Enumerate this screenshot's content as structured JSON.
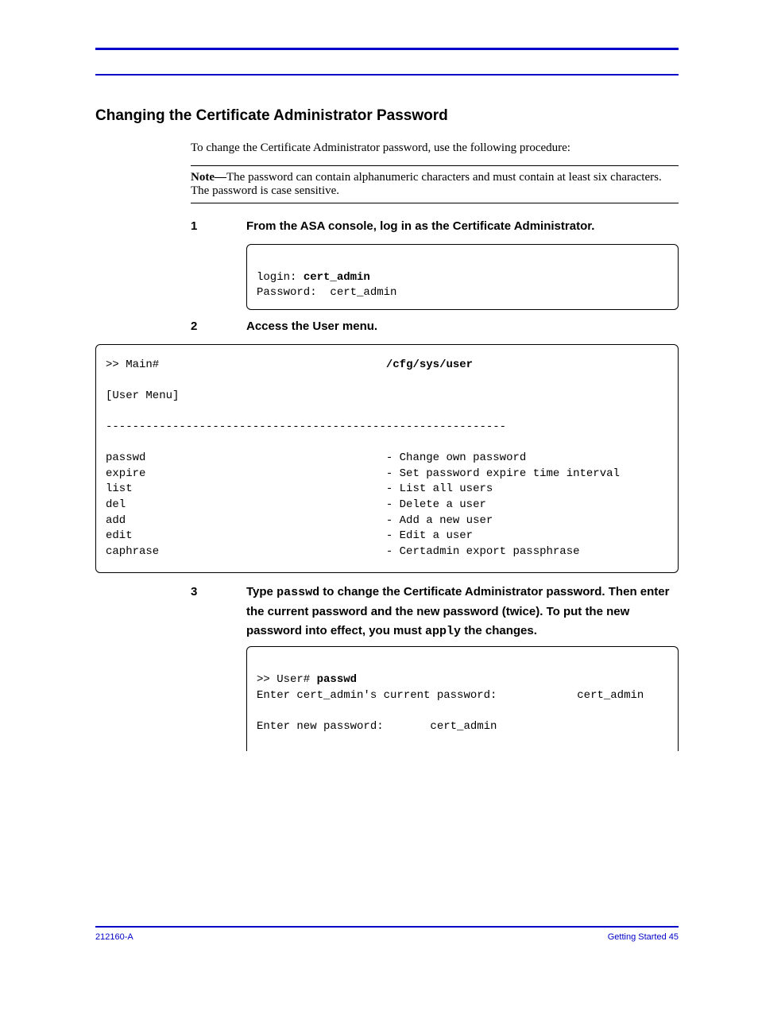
{
  "header": {
    "left": "",
    "right": ""
  },
  "section": {
    "heading": "Changing the Certificate Administrator Password",
    "intro": "To change the Certificate Administrator password, use the following procedure:",
    "note_label": "Note—",
    "note_text": "The password can contain alphanumeric characters and must contain at least six characters. The password is case sensitive."
  },
  "steps": {
    "s1_num": "1",
    "s1_text": "From the ASA console, log in as the Certificate Administrator.",
    "s1_code_line1_a": "login: ",
    "s1_code_line1_b": "cert_admin",
    "s1_code_line2": "Password:  cert_admin",
    "s2_num": "2",
    "s2_text": "Access the User menu.",
    "menu_prompt": ">> Main#",
    "menu_path": "/cfg/sys/user",
    "menu_title": "[User Menu]",
    "menu_rule": "------------------------------------------------------------",
    "menu_rows": [
      {
        "cmd": "passwd",
        "desc": "- Change own password"
      },
      {
        "cmd": "expire",
        "desc": "- Set password expire time interval"
      },
      {
        "cmd": "list",
        "desc": "- List all users"
      },
      {
        "cmd": "del",
        "desc": "- Delete a user"
      },
      {
        "cmd": "add",
        "desc": "- Add a new user"
      },
      {
        "cmd": "edit",
        "desc": "- Edit a user"
      },
      {
        "cmd": "caphrase",
        "desc": "- Certadmin export passphrase"
      }
    ],
    "s3_num": "3",
    "s3_text_a": "Type ",
    "s3_text_b": "passwd",
    "s3_text_c": " to change the Certificate Administrator password. Then enter the current password and the new password (twice). To put the new password into effect, you must ",
    "s3_text_d": "apply",
    "s3_text_e": " the changes.",
    "s3_code_line1_a": ">> User# ",
    "s3_code_line1_b": "passwd",
    "s3_code_line2_a": "Enter cert_admin's current password:",
    "s3_code_line2_b": "cert_admin",
    "s3_code_line3_a": "Enter new password:",
    "s3_code_line3_b": "cert_admin"
  },
  "footer": {
    "left": "212160-A",
    "right": "Getting Started     45"
  },
  "style": {
    "rule_color": "#0000c8",
    "bg": "#ffffff",
    "pad_col": 40,
    "desc_col": 350
  }
}
